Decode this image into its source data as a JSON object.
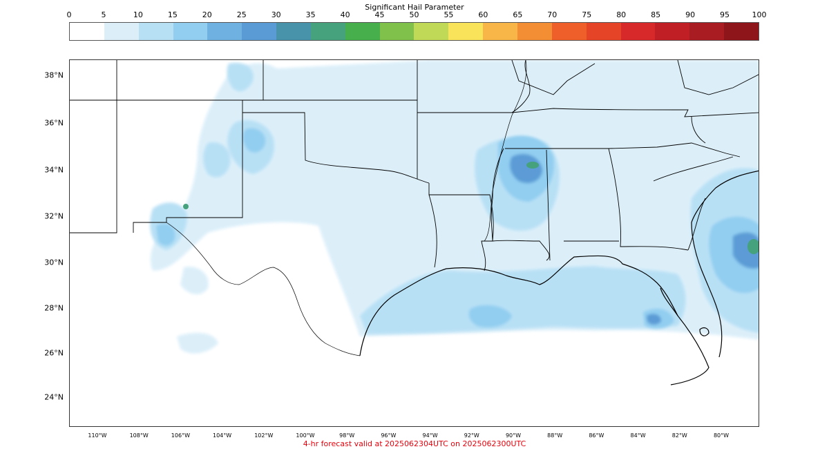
{
  "colorbar": {
    "title": "Significant Hail Parameter",
    "ticks": [
      "0",
      "5",
      "10",
      "15",
      "20",
      "25",
      "30",
      "35",
      "40",
      "45",
      "50",
      "55",
      "60",
      "65",
      "70",
      "75",
      "80",
      "85",
      "90",
      "95",
      "100"
    ],
    "colors": [
      "#ffffff",
      "#dceff9",
      "#b8e0f5",
      "#92cef0",
      "#6fb2e2",
      "#5b9bd5",
      "#4892aa",
      "#45a27c",
      "#47b04d",
      "#7fc14a",
      "#c0d957",
      "#f8e35b",
      "#f8b548",
      "#f48e34",
      "#ef5f2a",
      "#e54427",
      "#d7282a",
      "#c01f26",
      "#a81c22",
      "#8e1519"
    ]
  },
  "map": {
    "lat_labels": [
      "38°N",
      "36°N",
      "34°N",
      "32°N",
      "30°N",
      "28°N",
      "26°N",
      "24°N"
    ],
    "lon_labels": [
      "110°W",
      "108°W",
      "106°W",
      "104°W",
      "102°W",
      "100°W",
      "98°W",
      "96°W",
      "94°W",
      "92°W",
      "90°W",
      "88°W",
      "86°W",
      "84°W",
      "82°W",
      "80°W"
    ],
    "background_color": "#ffffff",
    "border_color": "#000000"
  },
  "footer": {
    "text": "4-hr forecast valid at 2025062304UTC on 2025062300UTC",
    "color": "#e8000b"
  }
}
